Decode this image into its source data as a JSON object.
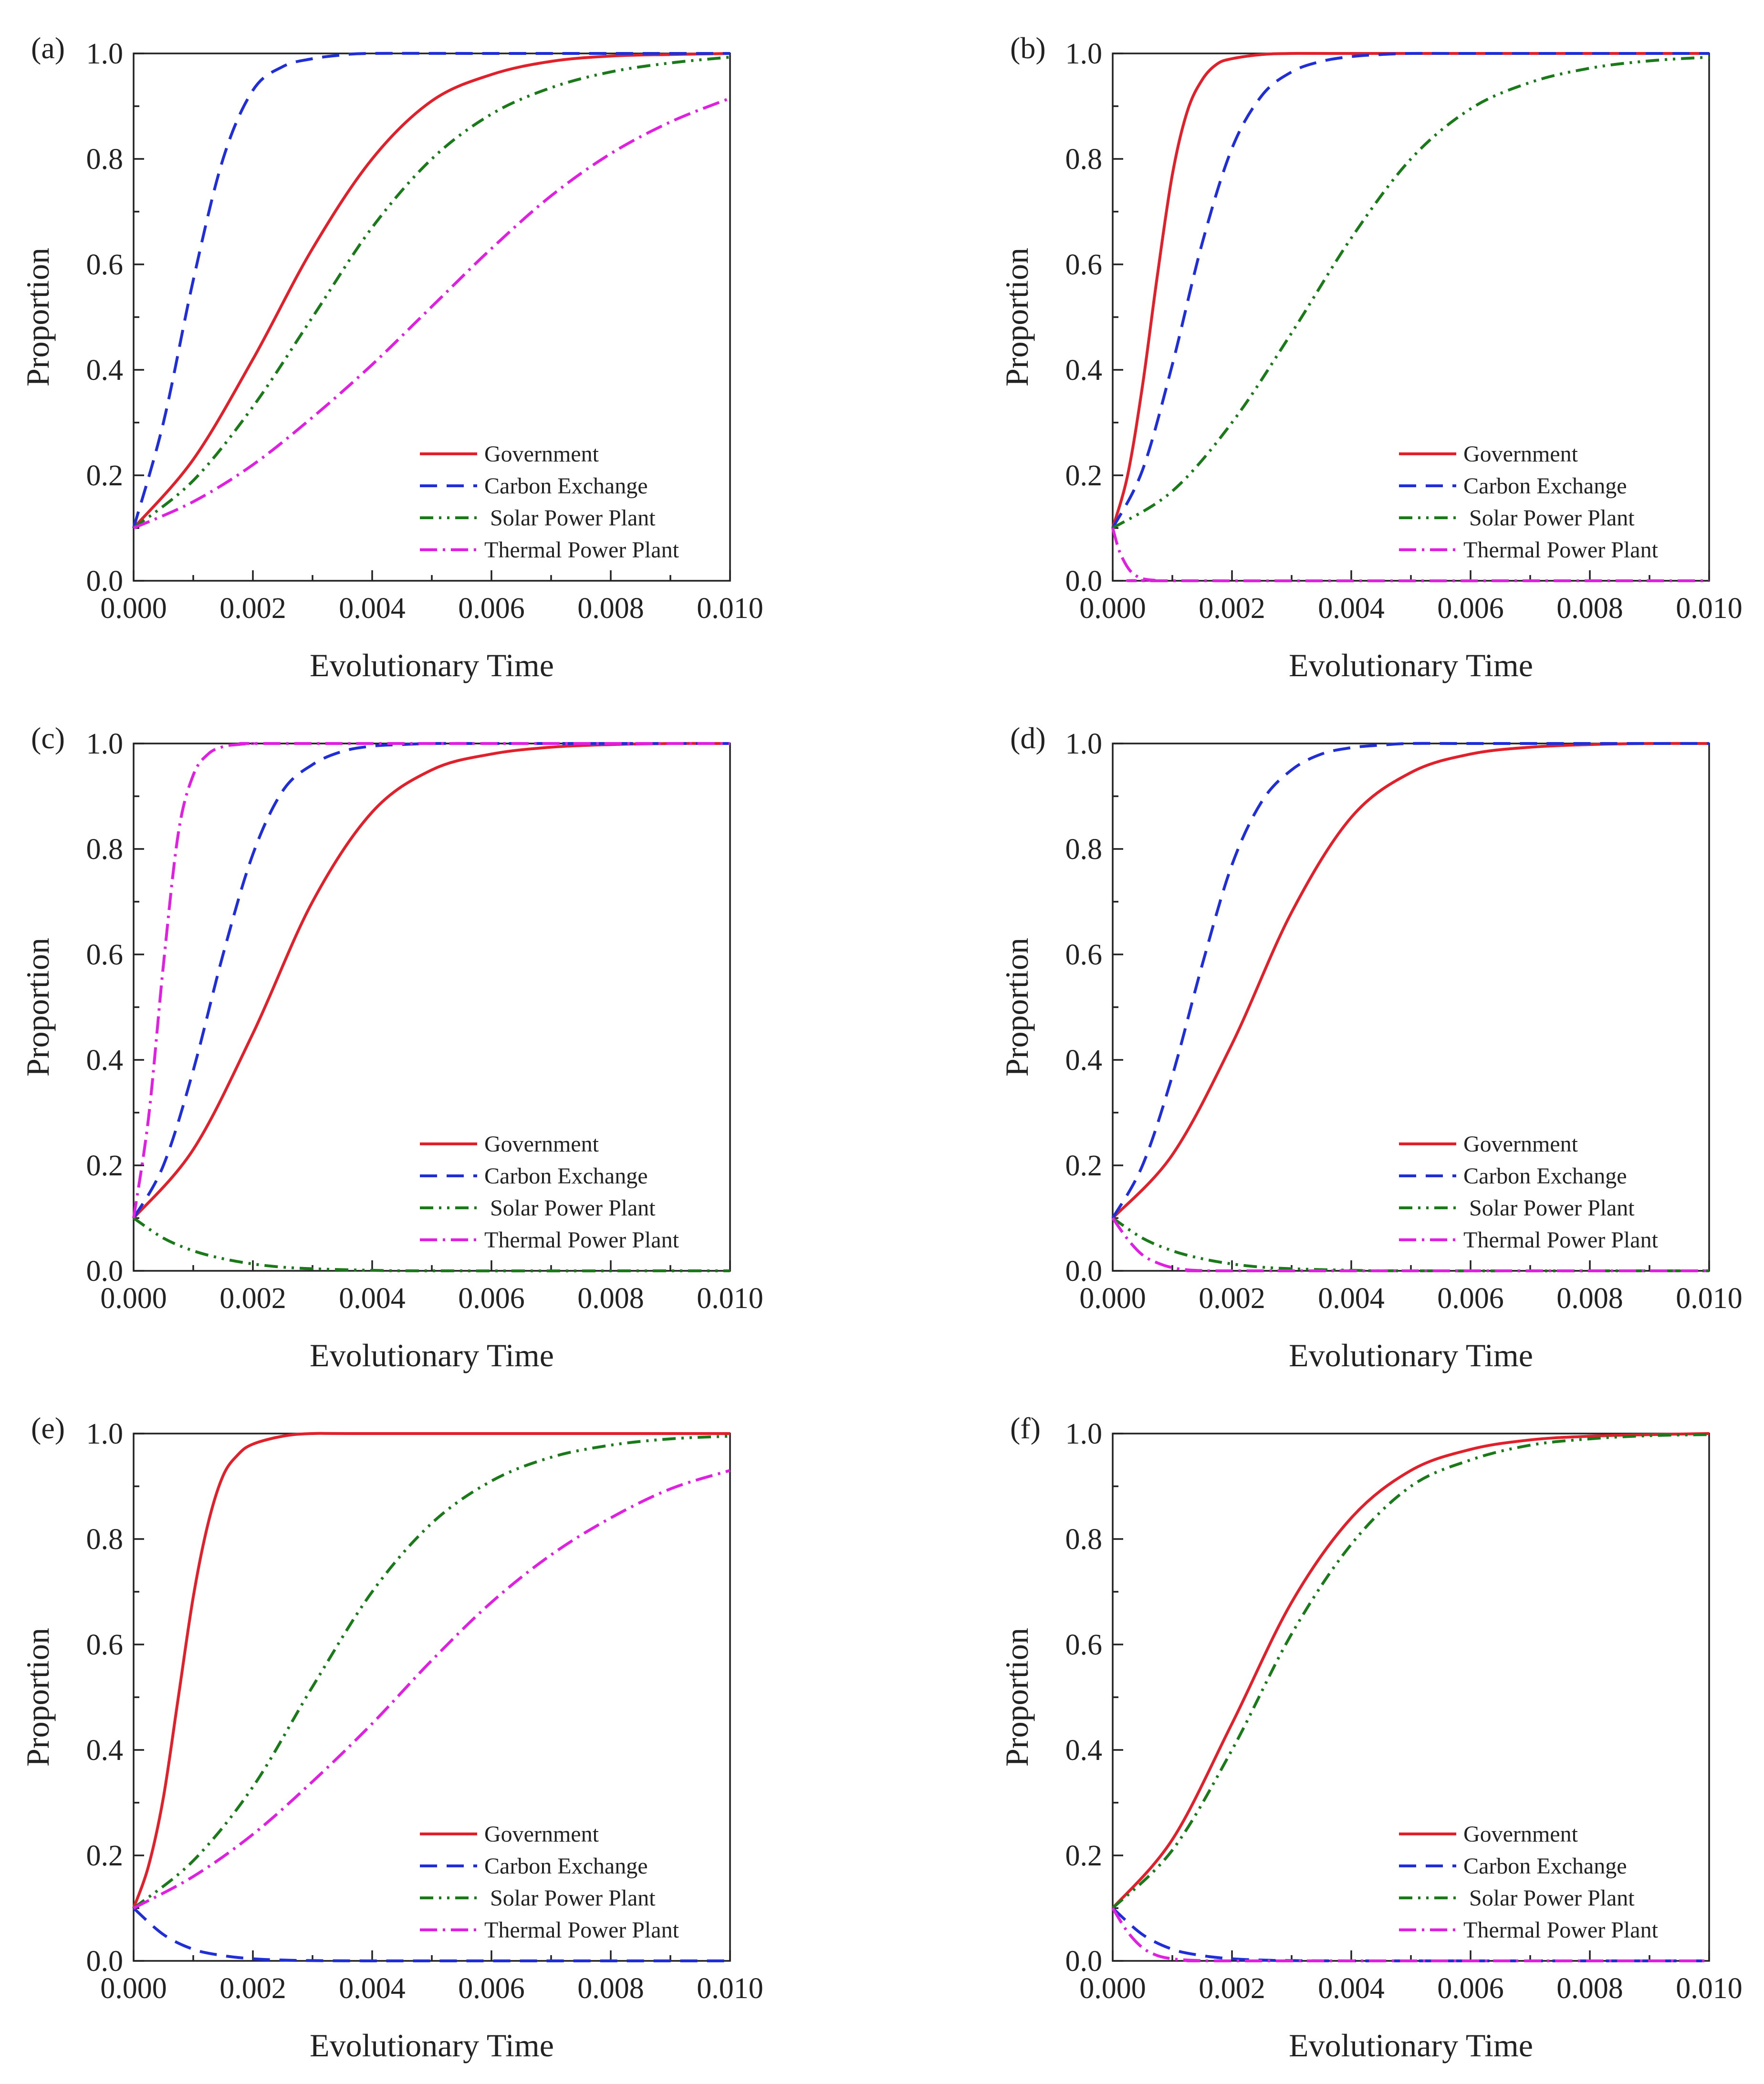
{
  "figure": {
    "colors": {
      "government": "#e0202a",
      "carbon_exchange": "#1f2ed6",
      "solar": "#1a7a1a",
      "thermal": "#e020e0",
      "axis": "#222222"
    }
  },
  "chart_data": [
    {
      "panel": "(a)",
      "type": "line",
      "xlabel": "Evolutionary Time",
      "ylabel": "Proportion",
      "xlim": [
        0,
        0.01
      ],
      "ylim": [
        0,
        1
      ],
      "xticks": [
        "0.000",
        "0.002",
        "0.004",
        "0.006",
        "0.008",
        "0.010"
      ],
      "yticks": [
        "0.0",
        "0.2",
        "0.4",
        "0.6",
        "0.8",
        "1.0"
      ],
      "legend_position": "bottom-right",
      "series": [
        {
          "name": "Government",
          "style": "solid",
          "color": "#e0202a",
          "x": [
            0,
            0.001,
            0.002,
            0.003,
            0.004,
            0.005,
            0.006,
            0.007,
            0.008,
            0.009,
            0.01
          ],
          "y": [
            0.1,
            0.23,
            0.42,
            0.63,
            0.8,
            0.91,
            0.96,
            0.985,
            0.995,
            0.998,
            1.0
          ]
        },
        {
          "name": "Carbon Exchange",
          "style": "dashed",
          "color": "#1f2ed6",
          "x": [
            0,
            0.0005,
            0.001,
            0.0015,
            0.002,
            0.0025,
            0.003,
            0.0035,
            0.004,
            0.006,
            0.01
          ],
          "y": [
            0.1,
            0.3,
            0.57,
            0.8,
            0.93,
            0.975,
            0.99,
            0.997,
            1.0,
            1.0,
            1.0
          ]
        },
        {
          "name": "Solar Power Plant",
          "style": "dash-dot-dot",
          "color": "#1a7a1a",
          "x": [
            0,
            0.001,
            0.002,
            0.003,
            0.004,
            0.005,
            0.006,
            0.007,
            0.008,
            0.009,
            0.01
          ],
          "y": [
            0.1,
            0.19,
            0.33,
            0.5,
            0.67,
            0.8,
            0.885,
            0.935,
            0.965,
            0.982,
            0.993
          ]
        },
        {
          "name": "Thermal Power Plant",
          "style": "dash-dot",
          "color": "#e020e0",
          "x": [
            0,
            0.001,
            0.002,
            0.003,
            0.004,
            0.005,
            0.006,
            0.007,
            0.008,
            0.009,
            0.01
          ],
          "y": [
            0.1,
            0.15,
            0.22,
            0.31,
            0.41,
            0.52,
            0.63,
            0.73,
            0.81,
            0.87,
            0.915
          ]
        }
      ],
      "legend": [
        "Government",
        "Carbon Exchange",
        " Solar Power Plant",
        "Thermal Power Plant"
      ]
    },
    {
      "panel": "(b)",
      "type": "line",
      "xlabel": "Evolutionary Time",
      "ylabel": "Proportion",
      "xlim": [
        0,
        0.01
      ],
      "ylim": [
        0,
        1
      ],
      "xticks": [
        "0.000",
        "0.002",
        "0.004",
        "0.006",
        "0.008",
        "0.010"
      ],
      "yticks": [
        "0.0",
        "0.2",
        "0.4",
        "0.6",
        "0.8",
        "1.0"
      ],
      "legend_position": "bottom-right",
      "series": [
        {
          "name": "Government",
          "style": "solid",
          "color": "#e0202a",
          "x": [
            0,
            0.00025,
            0.0005,
            0.00075,
            0.001,
            0.00125,
            0.0015,
            0.00175,
            0.002,
            0.0025,
            0.003,
            0.004,
            0.01
          ],
          "y": [
            0.1,
            0.2,
            0.37,
            0.58,
            0.77,
            0.89,
            0.95,
            0.98,
            0.99,
            0.998,
            1.0,
            1.0,
            1.0
          ]
        },
        {
          "name": "Carbon Exchange",
          "style": "dashed",
          "color": "#1f2ed6",
          "x": [
            0,
            0.0005,
            0.001,
            0.0015,
            0.002,
            0.0025,
            0.003,
            0.0035,
            0.004,
            0.0045,
            0.005,
            0.006,
            0.01
          ],
          "y": [
            0.1,
            0.21,
            0.41,
            0.64,
            0.82,
            0.92,
            0.965,
            0.985,
            0.994,
            0.998,
            1.0,
            1.0,
            1.0
          ]
        },
        {
          "name": "Solar Power Plant",
          "style": "dash-dot-dot",
          "color": "#1a7a1a",
          "x": [
            0,
            0.001,
            0.002,
            0.003,
            0.004,
            0.005,
            0.006,
            0.007,
            0.008,
            0.009,
            0.01
          ],
          "y": [
            0.1,
            0.17,
            0.3,
            0.47,
            0.65,
            0.8,
            0.895,
            0.945,
            0.972,
            0.986,
            0.993
          ]
        },
        {
          "name": "Thermal Power Plant",
          "style": "dash-dot",
          "color": "#e020e0",
          "x": [
            0,
            0.0001,
            0.0002,
            0.0003,
            0.0004,
            0.0005,
            0.0007,
            0.001,
            0.01
          ],
          "y": [
            0.1,
            0.06,
            0.035,
            0.018,
            0.009,
            0.004,
            0.001,
            0.0,
            0.0
          ]
        }
      ],
      "legend": [
        "Government",
        "Carbon Exchange",
        " Solar Power Plant",
        "Thermal Power Plant"
      ]
    },
    {
      "panel": "(c)",
      "type": "line",
      "xlabel": "Evolutionary Time",
      "ylabel": "Proportion",
      "xlim": [
        0,
        0.01
      ],
      "ylim": [
        0,
        1
      ],
      "xticks": [
        "0.000",
        "0.002",
        "0.004",
        "0.006",
        "0.008",
        "0.010"
      ],
      "yticks": [
        "0.0",
        "0.2",
        "0.4",
        "0.6",
        "0.8",
        "1.0"
      ],
      "legend_position": "bottom-right",
      "series": [
        {
          "name": "Government",
          "style": "solid",
          "color": "#e0202a",
          "x": [
            0,
            0.001,
            0.002,
            0.003,
            0.004,
            0.005,
            0.006,
            0.007,
            0.008,
            0.009,
            0.01
          ],
          "y": [
            0.1,
            0.23,
            0.45,
            0.7,
            0.87,
            0.95,
            0.98,
            0.993,
            0.998,
            1.0,
            1.0
          ]
        },
        {
          "name": "Carbon Exchange",
          "style": "dashed",
          "color": "#1f2ed6",
          "x": [
            0,
            0.0005,
            0.001,
            0.0015,
            0.002,
            0.0025,
            0.003,
            0.0035,
            0.004,
            0.0045,
            0.005,
            0.006,
            0.01
          ],
          "y": [
            0.1,
            0.2,
            0.38,
            0.6,
            0.79,
            0.91,
            0.96,
            0.985,
            0.995,
            0.998,
            1.0,
            1.0,
            1.0
          ]
        },
        {
          "name": "Solar Power Plant",
          "style": "dash-dot-dot",
          "color": "#1a7a1a",
          "x": [
            0,
            0.0005,
            0.001,
            0.0015,
            0.002,
            0.0025,
            0.003,
            0.004,
            0.005,
            0.01
          ],
          "y": [
            0.1,
            0.062,
            0.038,
            0.023,
            0.013,
            0.007,
            0.004,
            0.001,
            0.0,
            0.0
          ]
        },
        {
          "name": "Thermal Power Plant",
          "style": "dash-dot",
          "color": "#e020e0",
          "x": [
            0,
            0.00025,
            0.0005,
            0.00075,
            0.001,
            0.00125,
            0.0015,
            0.00175,
            0.002,
            0.0025,
            0.01
          ],
          "y": [
            0.1,
            0.29,
            0.58,
            0.83,
            0.94,
            0.98,
            0.994,
            0.998,
            1.0,
            1.0,
            1.0
          ]
        }
      ],
      "legend": [
        "Government",
        "Carbon Exchange",
        " Solar Power Plant",
        "Thermal Power Plant"
      ]
    },
    {
      "panel": "(d)",
      "type": "line",
      "xlabel": "Evolutionary Time",
      "ylabel": "Proportion",
      "xlim": [
        0,
        0.01
      ],
      "ylim": [
        0,
        1
      ],
      "xticks": [
        "0.000",
        "0.002",
        "0.004",
        "0.006",
        "0.008",
        "0.010"
      ],
      "yticks": [
        "0.0",
        "0.2",
        "0.4",
        "0.6",
        "0.8",
        "1.0"
      ],
      "legend_position": "bottom-right",
      "series": [
        {
          "name": "Government",
          "style": "solid",
          "color": "#e0202a",
          "x": [
            0,
            0.001,
            0.002,
            0.003,
            0.004,
            0.005,
            0.006,
            0.007,
            0.008,
            0.009,
            0.01
          ],
          "y": [
            0.1,
            0.22,
            0.43,
            0.68,
            0.86,
            0.945,
            0.98,
            0.993,
            0.998,
            1.0,
            1.0
          ]
        },
        {
          "name": "Carbon Exchange",
          "style": "dashed",
          "color": "#1f2ed6",
          "x": [
            0,
            0.0005,
            0.001,
            0.0015,
            0.002,
            0.0025,
            0.003,
            0.0035,
            0.004,
            0.0045,
            0.005,
            0.006,
            0.01
          ],
          "y": [
            0.1,
            0.2,
            0.37,
            0.58,
            0.77,
            0.89,
            0.95,
            0.98,
            0.992,
            0.997,
            1.0,
            1.0,
            1.0
          ]
        },
        {
          "name": "Solar Power Plant",
          "style": "dash-dot-dot",
          "color": "#1a7a1a",
          "x": [
            0,
            0.0005,
            0.001,
            0.0015,
            0.002,
            0.0025,
            0.003,
            0.004,
            0.005,
            0.01
          ],
          "y": [
            0.1,
            0.062,
            0.038,
            0.023,
            0.013,
            0.007,
            0.004,
            0.001,
            0.0,
            0.0
          ]
        },
        {
          "name": "Thermal Power Plant",
          "style": "dash-dot",
          "color": "#e020e0",
          "x": [
            0,
            0.00025,
            0.0005,
            0.00075,
            0.001,
            0.00125,
            0.0015,
            0.002,
            0.01
          ],
          "y": [
            0.1,
            0.06,
            0.03,
            0.015,
            0.006,
            0.002,
            0.0005,
            0.0,
            0.0
          ]
        }
      ],
      "legend": [
        "Government",
        "Carbon Exchange",
        " Solar Power Plant",
        "Thermal Power Plant"
      ]
    },
    {
      "panel": "(e)",
      "type": "line",
      "xlabel": "Evolutionary Time",
      "ylabel": "Proportion",
      "xlim": [
        0,
        0.01
      ],
      "ylim": [
        0,
        1
      ],
      "xticks": [
        "0.000",
        "0.002",
        "0.004",
        "0.006",
        "0.008",
        "0.010"
      ],
      "yticks": [
        "0.0",
        "0.2",
        "0.4",
        "0.6",
        "0.8",
        "1.0"
      ],
      "legend_position": "bottom-right",
      "series": [
        {
          "name": "Government",
          "style": "solid",
          "color": "#e0202a",
          "x": [
            0,
            0.00025,
            0.0005,
            0.00075,
            0.001,
            0.00125,
            0.0015,
            0.00175,
            0.002,
            0.0025,
            0.003,
            0.004,
            0.01
          ],
          "y": [
            0.1,
            0.18,
            0.31,
            0.5,
            0.69,
            0.83,
            0.92,
            0.96,
            0.98,
            0.995,
            1.0,
            1.0,
            1.0
          ]
        },
        {
          "name": "Carbon Exchange",
          "style": "dashed",
          "color": "#1f2ed6",
          "x": [
            0,
            0.0005,
            0.001,
            0.0015,
            0.002,
            0.0025,
            0.003,
            0.004,
            0.005,
            0.01
          ],
          "y": [
            0.1,
            0.05,
            0.022,
            0.01,
            0.004,
            0.0015,
            0.0005,
            0.0,
            0.0,
            0.0
          ]
        },
        {
          "name": "Solar Power Plant",
          "style": "dash-dot-dot",
          "color": "#1a7a1a",
          "x": [
            0,
            0.001,
            0.002,
            0.003,
            0.004,
            0.005,
            0.006,
            0.007,
            0.008,
            0.009,
            0.01
          ],
          "y": [
            0.1,
            0.19,
            0.33,
            0.52,
            0.7,
            0.83,
            0.91,
            0.955,
            0.978,
            0.99,
            0.995
          ]
        },
        {
          "name": "Thermal Power Plant",
          "style": "dash-dot",
          "color": "#e020e0",
          "x": [
            0,
            0.001,
            0.002,
            0.003,
            0.004,
            0.005,
            0.006,
            0.007,
            0.008,
            0.009,
            0.01
          ],
          "y": [
            0.1,
            0.16,
            0.24,
            0.34,
            0.45,
            0.57,
            0.68,
            0.77,
            0.84,
            0.895,
            0.93
          ]
        }
      ],
      "legend": [
        "Government",
        "Carbon Exchange",
        " Solar Power Plant",
        "Thermal Power Plant"
      ]
    },
    {
      "panel": "(f)",
      "type": "line",
      "xlabel": "Evolutionary Time",
      "ylabel": "Proportion",
      "xlim": [
        0,
        0.01
      ],
      "ylim": [
        0,
        1
      ],
      "xticks": [
        "0.000",
        "0.002",
        "0.004",
        "0.006",
        "0.008",
        "0.010"
      ],
      "yticks": [
        "0.0",
        "0.2",
        "0.4",
        "0.6",
        "0.8",
        "1.0"
      ],
      "legend_position": "bottom-right",
      "series": [
        {
          "name": "Government",
          "style": "solid",
          "color": "#e0202a",
          "x": [
            0,
            0.001,
            0.002,
            0.003,
            0.004,
            0.005,
            0.006,
            0.007,
            0.008,
            0.009,
            0.01
          ],
          "y": [
            0.1,
            0.23,
            0.45,
            0.68,
            0.84,
            0.93,
            0.97,
            0.988,
            0.995,
            0.998,
            1.0
          ]
        },
        {
          "name": "Carbon Exchange",
          "style": "dashed",
          "color": "#1f2ed6",
          "x": [
            0,
            0.0005,
            0.001,
            0.0015,
            0.002,
            0.0025,
            0.003,
            0.004,
            0.005,
            0.01
          ],
          "y": [
            0.1,
            0.05,
            0.022,
            0.01,
            0.004,
            0.0015,
            0.0005,
            0.0,
            0.0,
            0.0
          ]
        },
        {
          "name": "Solar Power Plant",
          "style": "dash-dot-dot",
          "color": "#1a7a1a",
          "x": [
            0,
            0.001,
            0.002,
            0.003,
            0.004,
            0.005,
            0.006,
            0.007,
            0.008,
            0.009,
            0.01
          ],
          "y": [
            0.1,
            0.21,
            0.4,
            0.62,
            0.79,
            0.9,
            0.95,
            0.978,
            0.99,
            0.996,
            0.998
          ]
        },
        {
          "name": "Thermal Power Plant",
          "style": "dash-dot",
          "color": "#e020e0",
          "x": [
            0,
            0.00025,
            0.0005,
            0.00075,
            0.001,
            0.00125,
            0.0015,
            0.002,
            0.01
          ],
          "y": [
            0.1,
            0.055,
            0.025,
            0.01,
            0.004,
            0.0015,
            0.0005,
            0.0,
            0.0
          ]
        }
      ],
      "legend": [
        "Government",
        "Carbon Exchange",
        " Solar Power Plant",
        "Thermal Power Plant"
      ]
    }
  ]
}
